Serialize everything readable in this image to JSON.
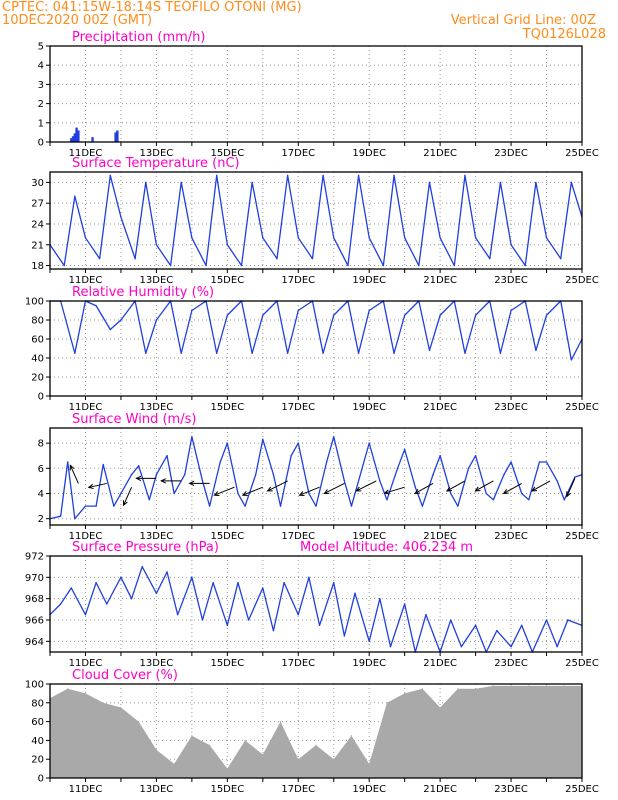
{
  "header": {
    "line1": "CPTEC:   041:15W-18:14S   TEOFILO OTONI (MG)",
    "line2": "10DEC2020 00Z (GMT)",
    "right1": "Vertical Grid Line: 00Z",
    "right2": "TQ0126L028"
  },
  "colors": {
    "line": "#1f3fe0",
    "header": "#ff8c1a",
    "title": "#ff00c8",
    "cloud": "#a9a9a9",
    "precip": "#1f3fe0"
  },
  "chart_data": [
    {
      "type": "bar",
      "title": "Precipitation (mm/h)",
      "xlabel": "",
      "ylabel": "",
      "ylim": [
        0,
        5
      ],
      "yticks": [
        0,
        1,
        2,
        3,
        4,
        5
      ],
      "xticks": [
        "11DEC",
        "13DEC",
        "15DEC",
        "17DEC",
        "19DEC",
        "21DEC",
        "23DEC",
        "25DEC"
      ],
      "x_day_range": [
        0,
        15
      ],
      "x": [
        0.6,
        0.65,
        0.7,
        0.75,
        0.8,
        1.2,
        1.85,
        1.9
      ],
      "values": [
        0.2,
        0.3,
        0.45,
        0.75,
        0.6,
        0.25,
        0.5,
        0.6
      ]
    },
    {
      "type": "line",
      "title": "Surface Temperature (nC)",
      "ylim": [
        17.5,
        31.5
      ],
      "yticks": [
        18,
        21,
        24,
        27,
        30
      ],
      "xticks": [
        "11DEC",
        "13DEC",
        "15DEC",
        "17DEC",
        "19DEC",
        "21DEC",
        "23DEC",
        "25DEC"
      ],
      "x_day_range": [
        0,
        15
      ],
      "x": [
        0.0,
        0.4,
        0.7,
        1.0,
        1.4,
        1.7,
        2.0,
        2.4,
        2.7,
        3.0,
        3.4,
        3.7,
        4.0,
        4.4,
        4.7,
        5.0,
        5.4,
        5.7,
        6.0,
        6.4,
        6.7,
        7.0,
        7.4,
        7.7,
        8.0,
        8.4,
        8.7,
        9.0,
        9.4,
        9.7,
        10.0,
        10.4,
        10.7,
        11.0,
        11.4,
        11.7,
        12.0,
        12.4,
        12.7,
        13.0,
        13.4,
        13.7,
        14.0,
        14.4,
        14.7,
        15.0
      ],
      "values": [
        21,
        18,
        28,
        22,
        19,
        31,
        25,
        19,
        30,
        21,
        18,
        30,
        22,
        18,
        31,
        21,
        18,
        30,
        22,
        19,
        31,
        22,
        19,
        31,
        22,
        18,
        31,
        22,
        18,
        31,
        22,
        18,
        30,
        22,
        18,
        31,
        22,
        19,
        30,
        21,
        18,
        30,
        22,
        19,
        30,
        25
      ]
    },
    {
      "type": "line",
      "title": "Relative Humidity (%)",
      "ylim": [
        0,
        100
      ],
      "yticks": [
        0,
        20,
        40,
        60,
        80,
        100
      ],
      "xticks": [
        "11DEC",
        "13DEC",
        "15DEC",
        "17DEC",
        "19DEC",
        "21DEC",
        "23DEC",
        "25DEC"
      ],
      "x_day_range": [
        0,
        15
      ],
      "x": [
        0.0,
        0.3,
        0.7,
        1.0,
        1.3,
        1.7,
        2.0,
        2.4,
        2.7,
        3.0,
        3.4,
        3.7,
        4.0,
        4.4,
        4.7,
        5.0,
        5.4,
        5.7,
        6.0,
        6.4,
        6.7,
        7.0,
        7.4,
        7.7,
        8.0,
        8.4,
        8.7,
        9.0,
        9.4,
        9.7,
        10.0,
        10.4,
        10.7,
        11.0,
        11.4,
        11.7,
        12.0,
        12.4,
        12.7,
        13.0,
        13.4,
        13.7,
        14.0,
        14.4,
        14.7,
        15.0
      ],
      "values": [
        100,
        100,
        45,
        100,
        95,
        70,
        80,
        100,
        45,
        80,
        100,
        45,
        90,
        100,
        45,
        85,
        100,
        45,
        85,
        100,
        45,
        90,
        100,
        45,
        85,
        100,
        45,
        90,
        100,
        45,
        85,
        100,
        48,
        85,
        100,
        45,
        85,
        100,
        45,
        90,
        100,
        48,
        85,
        100,
        38,
        60
      ]
    },
    {
      "type": "line",
      "title": "Surface Wind (m/s)",
      "ylim": [
        1.5,
        9.2
      ],
      "yticks": [
        2,
        4,
        6,
        8
      ],
      "xticks": [
        "11DEC",
        "13DEC",
        "15DEC",
        "17DEC",
        "19DEC",
        "21DEC",
        "23DEC",
        "25DEC"
      ],
      "x_day_range": [
        0,
        15
      ],
      "x": [
        0.0,
        0.3,
        0.5,
        0.7,
        1.0,
        1.3,
        1.5,
        1.8,
        2.0,
        2.3,
        2.5,
        2.8,
        3.0,
        3.3,
        3.5,
        3.8,
        4.0,
        4.3,
        4.5,
        4.8,
        5.0,
        5.3,
        5.5,
        5.8,
        6.0,
        6.3,
        6.5,
        6.8,
        7.0,
        7.3,
        7.5,
        7.8,
        8.0,
        8.3,
        8.5,
        8.8,
        9.0,
        9.3,
        9.5,
        9.8,
        10.0,
        10.3,
        10.5,
        10.8,
        11.0,
        11.3,
        11.5,
        11.8,
        12.0,
        12.3,
        12.5,
        12.8,
        13.0,
        13.3,
        13.5,
        13.8,
        14.0,
        14.3,
        14.5,
        14.8,
        15.0
      ],
      "values": [
        2.0,
        2.2,
        6.5,
        2.0,
        3.0,
        3.0,
        6.3,
        3.0,
        4.0,
        5.5,
        6.2,
        3.5,
        5.5,
        7.0,
        4.0,
        5.5,
        8.5,
        5.0,
        3.0,
        6.5,
        8.0,
        4.0,
        3.0,
        5.5,
        8.3,
        5.5,
        3.0,
        7.0,
        8.0,
        4.0,
        3.0,
        6.5,
        8.5,
        5.0,
        3.0,
        6.0,
        8.0,
        5.0,
        3.5,
        6.0,
        7.5,
        4.5,
        3.0,
        5.5,
        7.0,
        4.0,
        3.0,
        6.0,
        7.0,
        4.0,
        3.5,
        5.5,
        6.5,
        4.0,
        3.5,
        6.5,
        6.5,
        5.0,
        3.5,
        5.3,
        5.5
      ],
      "arrows_x": [
        0.8,
        1.6,
        2.3,
        3.0,
        3.7,
        4.5,
        5.2,
        6.0,
        6.7,
        7.6,
        8.3,
        9.2,
        10.0,
        10.8,
        11.7,
        12.5,
        13.3,
        14.1,
        14.8
      ],
      "arrows_y": [
        4.8,
        4.8,
        4.5,
        5.2,
        5.0,
        4.8,
        4.5,
        4.5,
        5.0,
        4.5,
        4.8,
        5.0,
        4.5,
        4.8,
        5.0,
        5.0,
        4.8,
        5.0,
        5.2
      ],
      "arrows_u": [
        -0.4,
        -0.9,
        -0.4,
        -1.0,
        -1.0,
        -1.0,
        -1.0,
        -1.0,
        -1.0,
        -1.0,
        -1.0,
        -1.0,
        -1.0,
        -0.9,
        -0.9,
        -0.9,
        -0.9,
        -0.9,
        -0.4
      ],
      "arrows_v": [
        0.9,
        -0.2,
        -0.9,
        0.0,
        0.0,
        0.0,
        -0.4,
        -0.4,
        -0.5,
        -0.4,
        -0.5,
        -0.5,
        -0.3,
        -0.5,
        -0.5,
        -0.5,
        -0.5,
        -0.5,
        -0.9
      ]
    },
    {
      "type": "line",
      "title": "Surface Pressure (hPa)",
      "annotation": "Model Altitude: 406.234 m",
      "ylim": [
        963,
        972
      ],
      "yticks": [
        964,
        966,
        968,
        970,
        972
      ],
      "xticks": [
        "11DEC",
        "13DEC",
        "15DEC",
        "17DEC",
        "19DEC",
        "21DEC",
        "23DEC",
        "25DEC"
      ],
      "x_day_range": [
        0,
        15
      ],
      "x": [
        0.0,
        0.3,
        0.6,
        1.0,
        1.3,
        1.6,
        2.0,
        2.3,
        2.6,
        3.0,
        3.3,
        3.6,
        4.0,
        4.3,
        4.6,
        5.0,
        5.3,
        5.6,
        6.0,
        6.3,
        6.6,
        7.0,
        7.3,
        7.6,
        8.0,
        8.3,
        8.6,
        9.0,
        9.3,
        9.6,
        10.0,
        10.3,
        10.6,
        11.0,
        11.3,
        11.6,
        12.0,
        12.3,
        12.6,
        13.0,
        13.3,
        13.6,
        14.0,
        14.3,
        14.6,
        15.0
      ],
      "values": [
        966.5,
        967.5,
        969.0,
        966.5,
        969.5,
        967.5,
        970.0,
        968.0,
        971.0,
        968.5,
        970.5,
        966.5,
        970.0,
        966.0,
        969.5,
        965.5,
        969.5,
        966.0,
        969.0,
        965.0,
        969.5,
        966.5,
        970.0,
        965.5,
        969.5,
        964.5,
        968.5,
        964.0,
        968.0,
        963.5,
        967.5,
        963.0,
        966.5,
        963.0,
        966.0,
        963.5,
        965.5,
        963.0,
        965.0,
        963.5,
        965.5,
        963.0,
        966.0,
        963.5,
        966.0,
        965.5
      ]
    },
    {
      "type": "area",
      "title": "Cloud Cover (%)",
      "ylim": [
        0,
        100
      ],
      "yticks": [
        0,
        20,
        40,
        60,
        80,
        100
      ],
      "xticks": [
        "11DEC",
        "13DEC",
        "15DEC",
        "17DEC",
        "19DEC",
        "21DEC",
        "23DEC",
        "25DEC"
      ],
      "x_day_range": [
        0,
        15
      ],
      "x": [
        0.0,
        0.5,
        1.0,
        1.5,
        2.0,
        2.5,
        3.0,
        3.5,
        4.0,
        4.5,
        5.0,
        5.5,
        6.0,
        6.5,
        7.0,
        7.5,
        8.0,
        8.5,
        9.0,
        9.5,
        10.0,
        10.5,
        11.0,
        11.5,
        12.0,
        12.5,
        13.0,
        13.5,
        14.0,
        14.5,
        15.0
      ],
      "values": [
        85,
        95,
        90,
        80,
        75,
        60,
        30,
        15,
        45,
        35,
        10,
        40,
        25,
        60,
        20,
        35,
        20,
        45,
        15,
        80,
        90,
        95,
        75,
        95,
        95,
        98,
        98,
        98,
        98,
        98,
        98
      ]
    }
  ]
}
